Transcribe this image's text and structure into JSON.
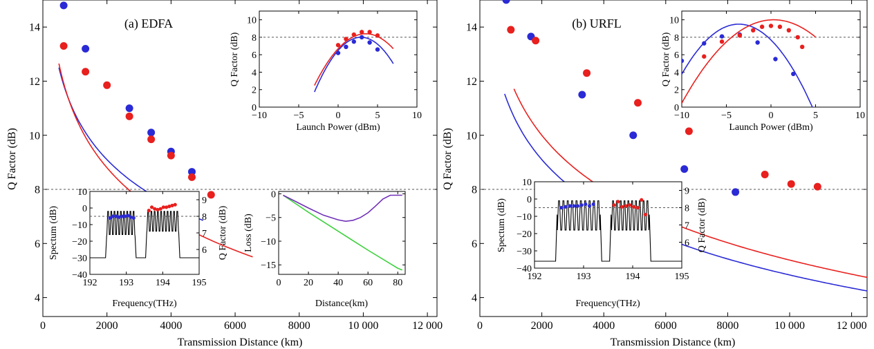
{
  "colors": {
    "blue": "#2a2ad6",
    "red": "#e8201e",
    "purple": "#7030b8",
    "green": "#3ed13e",
    "black": "#000000"
  },
  "chart_data": [
    {
      "id": "a-main",
      "type": "scatter",
      "title": "(a) EDFA",
      "xlabel": "Transmission Distance (km)",
      "ylabel": "Q Factor (dB)",
      "xlim": [
        0,
        12300
      ],
      "ylim": [
        3.3,
        15
      ],
      "xticks": [
        0,
        2000,
        4000,
        6000,
        8000,
        10000,
        12000
      ],
      "xtick_labels": [
        "0",
        "2000",
        "4000",
        "6000",
        "8000",
        "10 000",
        "12 000"
      ],
      "yticks": [
        4,
        6,
        8,
        10,
        12,
        14
      ],
      "yticks_labeled": [
        4,
        6,
        8,
        10,
        12,
        14
      ],
      "threshold": 8,
      "series": [
        {
          "color": "blue",
          "points": [
            [
              650,
              14.8
            ],
            [
              1330,
              13.2
            ],
            [
              2700,
              11.0
            ],
            [
              3380,
              10.1
            ],
            [
              4000,
              9.4
            ],
            [
              4650,
              8.65
            ]
          ],
          "curve": {
            "xmin": 500,
            "xmax": 5000,
            "a": 5.65,
            "b": 9.1
          }
        },
        {
          "color": "red",
          "points": [
            [
              650,
              13.3
            ],
            [
              1330,
              12.35
            ],
            [
              2000,
              11.85
            ],
            [
              2700,
              10.7
            ],
            [
              3380,
              9.85
            ],
            [
              4000,
              9.25
            ],
            [
              4650,
              8.45
            ],
            [
              5250,
              7.8
            ]
          ],
          "curve": {
            "xmin": 500,
            "xmax": 6550,
            "a": 6.4,
            "b": 8.8
          }
        }
      ]
    },
    {
      "id": "a-inset-launch",
      "type": "scatter",
      "xlabel": "Launch Power (dBm)",
      "ylabel": "Q Factor (dB)",
      "xlim": [
        -10,
        10
      ],
      "ylim": [
        0,
        11
      ],
      "xticks": [
        -10,
        -5,
        0,
        5,
        10
      ],
      "xtick_labels": [
        "−10",
        "−5",
        "0",
        "5",
        "10"
      ],
      "yticks": [
        0,
        2,
        4,
        6,
        8,
        10
      ],
      "yticks_labeled": [
        0,
        2,
        4,
        6,
        8,
        10
      ],
      "threshold": 8,
      "series": [
        {
          "color": "blue",
          "points": [
            [
              0,
              6.2
            ],
            [
              1,
              6.9
            ],
            [
              2,
              7.5
            ],
            [
              3,
              8.0
            ],
            [
              4,
              7.4
            ],
            [
              5,
              6.6
            ]
          ],
          "curve": {
            "xmin": -3,
            "xmax": 7,
            "peak": 8.0,
            "p0": 2.9,
            "k": 0.18
          }
        },
        {
          "color": "red",
          "points": [
            [
              0,
              7.1
            ],
            [
              1,
              7.8
            ],
            [
              2,
              8.3
            ],
            [
              3,
              8.6
            ],
            [
              4,
              8.6
            ],
            [
              5,
              8.2
            ]
          ],
          "curve": {
            "xmin": -3,
            "xmax": 7,
            "peak": 8.4,
            "p0": 3.5,
            "k": 0.14
          }
        }
      ]
    },
    {
      "id": "a-inset-spectrum",
      "type": "line",
      "xlabel": "Frequency(THz)",
      "ylabel": "Spectum (dB)",
      "ylabel2": "Q Factor (dB)",
      "xlim": [
        192,
        195
      ],
      "ylim": [
        -40,
        10
      ],
      "xticks": [
        192,
        193,
        194,
        195
      ],
      "xtick_labels": [
        "192",
        "193",
        "194",
        "195"
      ],
      "yticks": [
        -40,
        -30,
        -20,
        -10,
        0,
        10
      ],
      "yticks_labeled": [
        -40,
        -30,
        -20,
        -10,
        0,
        10
      ],
      "y2lim": [
        4.5,
        9.5
      ],
      "y2ticks": [
        6,
        7,
        8,
        9
      ],
      "threshold2": 8,
      "floor": -30,
      "blocks": [
        {
          "start": 192.5,
          "end": 193.2,
          "n": 9,
          "plateau": -17,
          "top": -2,
          "bottom": -16
        },
        {
          "start": 193.6,
          "end": 194.4,
          "n": 10,
          "plateau": -15,
          "top": -2,
          "bottom": -14
        }
      ],
      "q_series": [
        {
          "color": "blue",
          "points": [
            [
              192.55,
              7.9
            ],
            [
              192.63,
              8.0
            ],
            [
              192.72,
              8.0
            ],
            [
              192.8,
              7.95
            ],
            [
              192.88,
              8.0
            ],
            [
              192.96,
              8.0
            ],
            [
              193.04,
              8.05
            ],
            [
              193.12,
              7.95
            ],
            [
              193.2,
              7.9
            ]
          ]
        },
        {
          "color": "red",
          "points": [
            [
              193.62,
              8.35
            ],
            [
              193.7,
              8.55
            ],
            [
              193.78,
              8.45
            ],
            [
              193.86,
              8.4
            ],
            [
              193.94,
              8.45
            ],
            [
              194.02,
              8.55
            ],
            [
              194.1,
              8.55
            ],
            [
              194.18,
              8.6
            ],
            [
              194.26,
              8.65
            ],
            [
              194.34,
              8.7
            ]
          ]
        }
      ]
    },
    {
      "id": "a-inset-loss",
      "type": "line",
      "xlabel": "Distance(km)",
      "ylabel": "Loss (dB)",
      "xlim": [
        0,
        85
      ],
      "ylim": [
        -17,
        0.5
      ],
      "xticks": [
        0,
        20,
        40,
        60,
        80
      ],
      "xtick_labels": [
        "0",
        "20",
        "40",
        "60",
        "80"
      ],
      "yticks": [
        -15,
        -10,
        -5,
        0
      ],
      "yticks_labeled": [
        -15,
        -10,
        -5,
        0
      ],
      "series": [
        {
          "color": "green",
          "points": [
            [
              3,
              -0.3
            ],
            [
              20,
              -3.9
            ],
            [
              40,
              -7.9
            ],
            [
              60,
              -11.9
            ],
            [
              80,
              -15.7
            ],
            [
              83,
              -16.1
            ]
          ]
        },
        {
          "color": "purple",
          "points": [
            [
              3,
              -0.3
            ],
            [
              10,
              -1.4
            ],
            [
              20,
              -3.0
            ],
            [
              30,
              -4.5
            ],
            [
              40,
              -5.5
            ],
            [
              45,
              -5.8
            ],
            [
              50,
              -5.6
            ],
            [
              55,
              -5.0
            ],
            [
              60,
              -4.0
            ],
            [
              65,
              -2.6
            ],
            [
              70,
              -1.1
            ],
            [
              75,
              -0.3
            ],
            [
              83,
              -0.3
            ]
          ]
        }
      ]
    },
    {
      "id": "b-main",
      "type": "scatter",
      "title": "(b) URFL",
      "xlabel": "Transmission Distance (km)",
      "ylabel": "Q Factor (dB)",
      "xlim": [
        0,
        12500
      ],
      "ylim": [
        3.3,
        15
      ],
      "xticks": [
        0,
        2000,
        4000,
        6000,
        8000,
        10000,
        12000
      ],
      "xtick_labels": [
        "0",
        "2000",
        "4000",
        "6000",
        "8000",
        "10 000",
        "12 000"
      ],
      "yticks": [
        4,
        6,
        8,
        10,
        12,
        14
      ],
      "yticks_labeled": [
        4,
        6,
        8,
        10,
        12,
        14
      ],
      "threshold": 8,
      "series": [
        {
          "color": "blue",
          "points": [
            [
              850,
              15.0
            ],
            [
              1650,
              13.65
            ],
            [
              3300,
              11.5
            ],
            [
              4950,
              10.0
            ],
            [
              6600,
              8.75
            ],
            [
              8250,
              7.9
            ]
          ],
          "curve": {
            "xmin": 800,
            "xmax": 12500,
            "a": 6.1,
            "b": 9.1
          }
        },
        {
          "color": "red",
          "points": [
            [
              1000,
              13.9
            ],
            [
              1800,
              13.5
            ],
            [
              3450,
              12.3
            ],
            [
              5100,
              11.2
            ],
            [
              6750,
              10.15
            ],
            [
              9200,
              8.55
            ],
            [
              10050,
              8.2
            ],
            [
              10900,
              8.1
            ]
          ],
          "curve": {
            "xmin": 1100,
            "xmax": 12500,
            "a": 6.6,
            "b": 10.0
          }
        }
      ]
    },
    {
      "id": "b-inset-launch",
      "type": "scatter",
      "xlabel": "Launch Power (dBm)",
      "ylabel": "Q Factor (dB)",
      "xlim": [
        -10,
        10
      ],
      "ylim": [
        0,
        11
      ],
      "xticks": [
        -10,
        -5,
        0,
        5,
        10
      ],
      "xtick_labels": [
        "−10",
        "−5",
        "0",
        "5",
        "10"
      ],
      "yticks": [
        0,
        2,
        4,
        6,
        8,
        10
      ],
      "yticks_labeled": [
        0,
        2,
        4,
        6,
        8,
        10
      ],
      "threshold": 8,
      "series": [
        {
          "color": "blue",
          "points": [
            [
              -10,
              5.3
            ],
            [
              -7.5,
              7.3
            ],
            [
              -5.5,
              8.1
            ],
            [
              -3.5,
              8.3
            ],
            [
              -1.5,
              7.4
            ],
            [
              0.5,
              5.5
            ],
            [
              2.5,
              3.8
            ]
          ],
          "curve": {
            "xmin": -10,
            "xmax": 5,
            "peak": 9.5,
            "p0": -3.6,
            "k": 0.14
          }
        },
        {
          "color": "red",
          "points": [
            [
              -7.5,
              5.8
            ],
            [
              -5.5,
              7.5
            ],
            [
              -3.5,
              8.2
            ],
            [
              -2,
              8.8
            ],
            [
              -1,
              9.2
            ],
            [
              0,
              9.3
            ],
            [
              1,
              9.2
            ],
            [
              2,
              8.8
            ],
            [
              3,
              8.0
            ],
            [
              3.5,
              6.9
            ]
          ],
          "curve": {
            "xmin": -10,
            "xmax": 5,
            "peak": 10.0,
            "p0": 0.3,
            "k": 0.09
          }
        }
      ]
    },
    {
      "id": "b-inset-spectrum",
      "type": "line",
      "xlabel": "Frequency(THz)",
      "ylabel": "Spectum (dB)",
      "ylabel2": "Q Factor (dB)",
      "xlim": [
        192,
        195
      ],
      "ylim": [
        -40,
        10
      ],
      "xticks": [
        192,
        193,
        194,
        195
      ],
      "xtick_labels": [
        "192",
        "193",
        "194",
        "195"
      ],
      "yticks": [
        -40,
        -30,
        -20,
        -10,
        0,
        10
      ],
      "yticks_labeled": [
        -40,
        -30,
        -20,
        -10,
        0,
        10
      ],
      "y2lim": [
        4.5,
        9.5
      ],
      "y2ticks": [
        6,
        7,
        8,
        9
      ],
      "threshold2": 8,
      "floor": -36,
      "blocks": [
        {
          "start": 192.5,
          "end": 193.3,
          "n": 10,
          "plateau": -9,
          "top": -1,
          "bottom": -18
        },
        {
          "start": 193.6,
          "end": 194.3,
          "n": 10,
          "plateau": -9,
          "top": -1,
          "bottom": -18
        }
      ],
      "q_series": [
        {
          "color": "blue",
          "points": [
            [
              192.55,
              8.0
            ],
            [
              192.63,
              8.05
            ],
            [
              192.72,
              8.1
            ],
            [
              192.8,
              8.1
            ],
            [
              192.88,
              8.1
            ],
            [
              192.96,
              8.15
            ],
            [
              193.04,
              8.2
            ],
            [
              193.12,
              8.1
            ],
            [
              193.2,
              8.2
            ]
          ]
        },
        {
          "color": "red",
          "points": [
            [
              193.62,
              8.15
            ],
            [
              193.7,
              8.35
            ],
            [
              193.78,
              8.05
            ],
            [
              193.86,
              8.1
            ],
            [
              193.94,
              8.15
            ],
            [
              194.02,
              8.05
            ],
            [
              194.1,
              8.0
            ],
            [
              194.18,
              8.45
            ],
            [
              194.26,
              7.6
            ]
          ]
        }
      ]
    }
  ]
}
